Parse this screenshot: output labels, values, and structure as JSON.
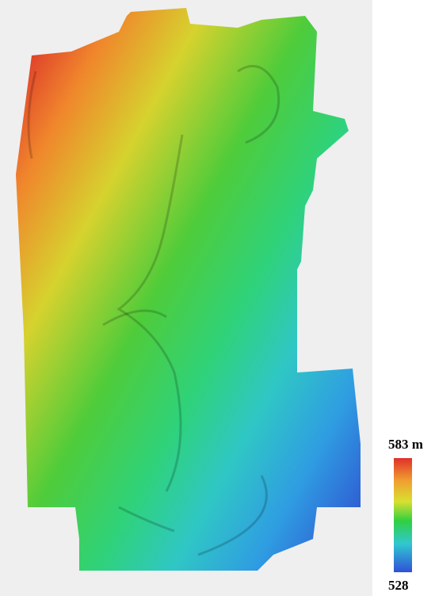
{
  "legend": {
    "max_label": "583 m",
    "min_label": "528"
  }
}
